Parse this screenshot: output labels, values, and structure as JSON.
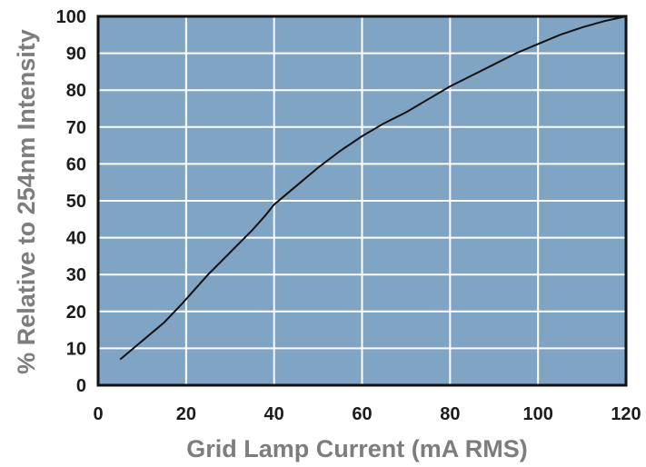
{
  "chart_data": {
    "type": "line",
    "title": "",
    "xlabel": "Grid Lamp Current (mA RMS)",
    "ylabel": "% Relative to 254nm Intensity",
    "xlim": [
      0,
      120
    ],
    "ylim": [
      0,
      100
    ],
    "x_ticks": [
      0,
      20,
      40,
      60,
      80,
      100,
      120
    ],
    "y_ticks": [
      0,
      10,
      20,
      30,
      40,
      50,
      60,
      70,
      80,
      90,
      100
    ],
    "grid": true,
    "legend": "none",
    "colors": {
      "plot_background": "#80a4c3",
      "grid": "#ffffff",
      "line": "#111111",
      "frame": "#111111"
    },
    "series": [
      {
        "x": [
          5,
          10,
          15,
          19,
          22,
          25,
          30,
          35,
          38,
          40,
          45,
          50,
          55,
          60,
          65,
          70,
          75,
          80,
          85,
          90,
          95,
          100,
          105,
          110,
          115,
          120
        ],
        "y": [
          7,
          12,
          17,
          22,
          26,
          30,
          36,
          42,
          46,
          49,
          54,
          59,
          63.5,
          67.5,
          71,
          74,
          77.5,
          81,
          84,
          87,
          90,
          92.5,
          95,
          97,
          98.7,
          100
        ]
      }
    ]
  }
}
